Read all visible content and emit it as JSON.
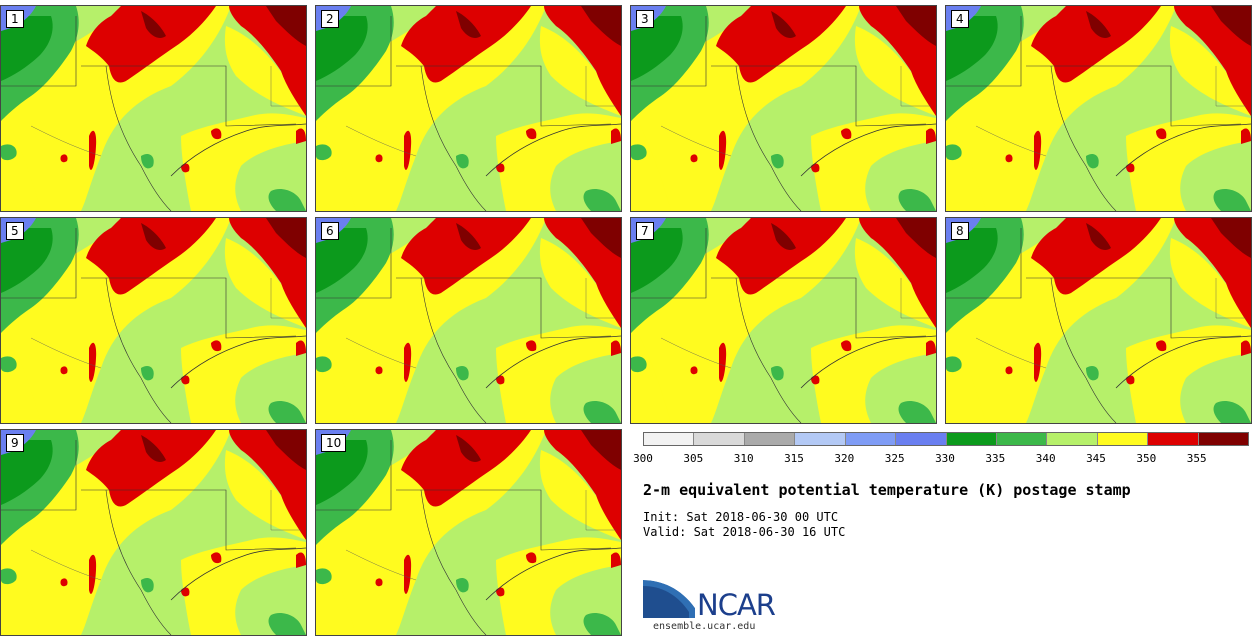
{
  "panels": [
    {
      "label": "1"
    },
    {
      "label": "2"
    },
    {
      "label": "3"
    },
    {
      "label": "4"
    },
    {
      "label": "5"
    },
    {
      "label": "6"
    },
    {
      "label": "7"
    },
    {
      "label": "8"
    },
    {
      "label": "9"
    },
    {
      "label": "10"
    }
  ],
  "legend": {
    "ticks": [
      "300",
      "305",
      "310",
      "315",
      "320",
      "325",
      "330",
      "335",
      "340",
      "345",
      "350",
      "355"
    ],
    "colors": [
      "#f2f2f2",
      "#d9d9d9",
      "#aaaaaa",
      "#b3c9f5",
      "#7f9cf5",
      "#6a7ff0",
      "#0c9a1c",
      "#3cb84a",
      "#b6f06a",
      "#fffb1f",
      "#dd0000",
      "#7f0000"
    ]
  },
  "title": "2-m equivalent potential temperature (K) postage stamp",
  "init": "Init: Sat 2018-06-30 00 UTC",
  "valid": "Valid: Sat 2018-06-30 16 UTC",
  "logo": {
    "text": "NCAR",
    "url": "ensemble.ucar.edu"
  }
}
